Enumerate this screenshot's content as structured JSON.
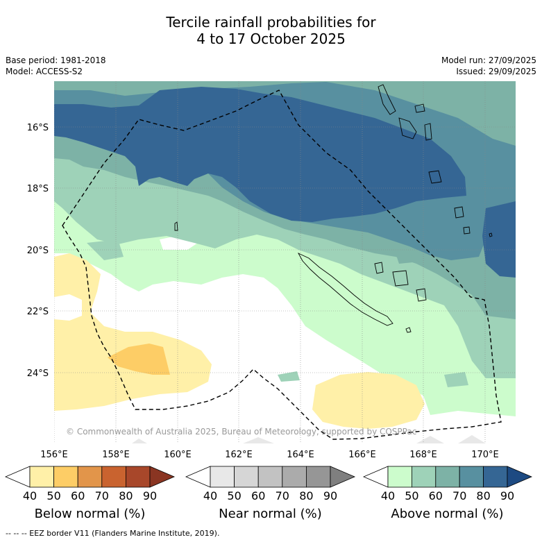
{
  "header": {
    "title_line1": "Tercile rainfall probabilities for",
    "title_line2": "4 to 17 October 2025"
  },
  "meta": {
    "base_period": "Base period: 1981-2018",
    "model": "Model: ACCESS-S2",
    "model_run": "Model run: 27/09/2025",
    "issued": "Issued: 29/09/2025"
  },
  "map": {
    "lat_labels": [
      "16°S",
      "18°S",
      "20°S",
      "22°S",
      "24°S"
    ],
    "lon_labels": [
      "156°E",
      "158°E",
      "160°E",
      "162°E",
      "164°E",
      "166°E",
      "168°E",
      "170°E"
    ],
    "copyright": "© Commonwealth of Australia 2025, Bureau of Meteorology, supported by COSPPac"
  },
  "legend": {
    "below": {
      "label": "Below normal (%)",
      "ticks": [
        "40",
        "50",
        "60",
        "70",
        "80",
        "90"
      ],
      "colors": [
        "#ffffff",
        "#fff0a8",
        "#fdcd66",
        "#e2954a",
        "#c9632f",
        "#a8472a",
        "#8a3522"
      ]
    },
    "near": {
      "label": "Near normal (%)",
      "ticks": [
        "40",
        "50",
        "60",
        "70",
        "80",
        "90"
      ],
      "colors": [
        "#ffffff",
        "#e8e8e8",
        "#d6d6d6",
        "#c2c2c2",
        "#ababab",
        "#969696",
        "#7f7f7f"
      ]
    },
    "above": {
      "label": "Above normal (%)",
      "ticks": [
        "40",
        "50",
        "60",
        "70",
        "80",
        "90"
      ],
      "colors": [
        "#ffffff",
        "#ccfccc",
        "#9ed2b8",
        "#7db2a6",
        "#5890a0",
        "#356694",
        "#1d4a82"
      ]
    }
  },
  "footnote": "--  --  -- EEZ border V11 (Flanders Marine Institute, 2019)."
}
